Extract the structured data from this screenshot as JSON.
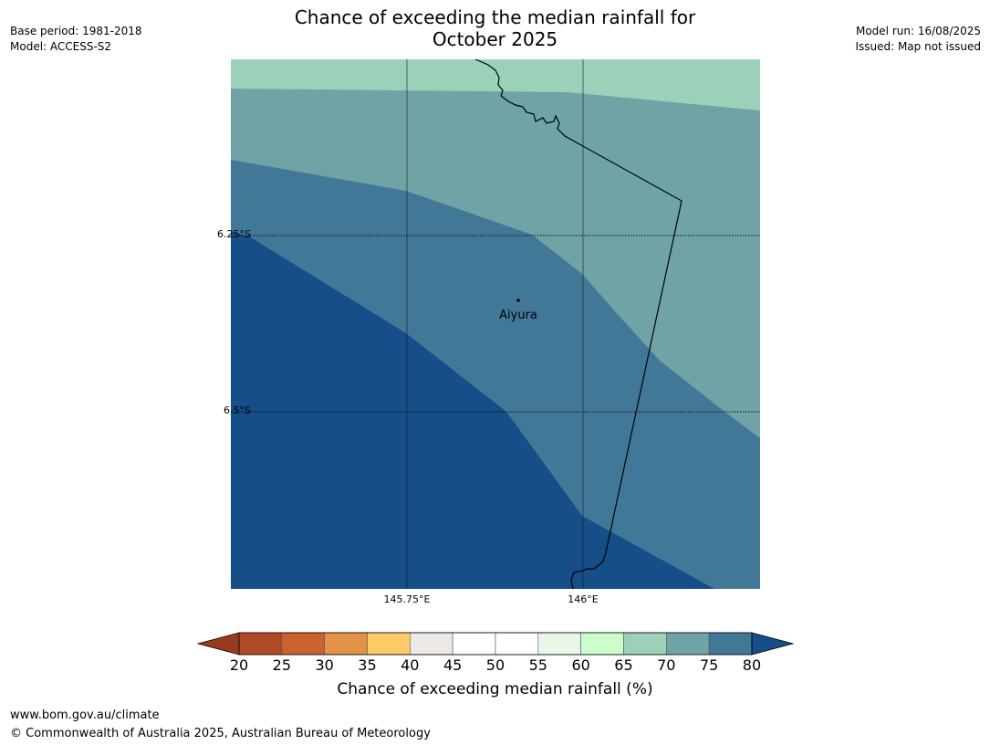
{
  "title": {
    "line1": "Chance of exceeding the median rainfall for",
    "line2": "October 2025"
  },
  "meta_left": {
    "base_period": "Base period: 1981-2018",
    "model": "Model: ACCESS-S2"
  },
  "meta_right": {
    "model_run": "Model run: 16/08/2025",
    "issued": "Issued: Map not issued"
  },
  "map": {
    "lat_labels": [
      "6.25°S",
      "6.5°S"
    ],
    "lon_labels": [
      "145.75°E",
      "146°E"
    ],
    "place": {
      "name": "Aiyura"
    },
    "colors": {
      "band_65_70": "#9dd0b9",
      "band_70_75": "#6fa3a6",
      "band_75_80": "#417898",
      "band_80_plus": "#154e88"
    }
  },
  "colorbar": {
    "ticks": [
      "20",
      "25",
      "30",
      "35",
      "40",
      "45",
      "50",
      "55",
      "60",
      "65",
      "70",
      "75",
      "80"
    ],
    "colors": [
      "#b04a26",
      "#cb6330",
      "#e29345",
      "#fecb66",
      "#ece8e6",
      "#ffffff",
      "#ffffff",
      "#eaf6ea",
      "#ccfecc",
      "#9dd0b9",
      "#6fa3a6",
      "#417898"
    ],
    "under_color": "#993a20",
    "over_color": "#154e88",
    "label": "Chance of exceeding median rainfall (%)"
  },
  "footer": {
    "url": "www.bom.gov.au/climate",
    "copyright": "© Commonwealth of Australia 2025, Australian Bureau of Meteorology"
  }
}
